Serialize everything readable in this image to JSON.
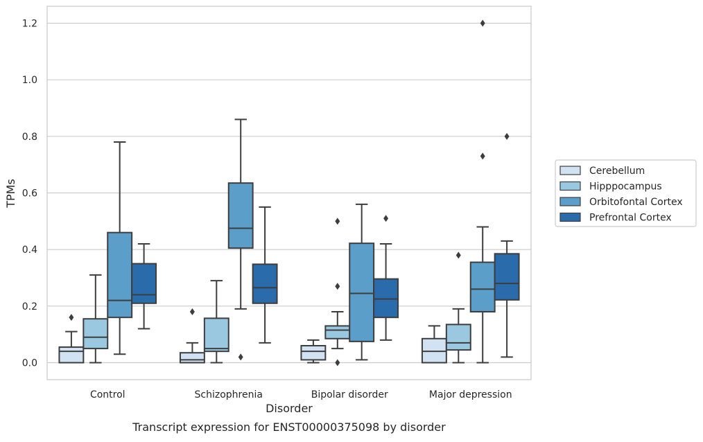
{
  "chart_data": {
    "type": "box",
    "title": "Transcript expression for ENST00000375098 by disorder",
    "xlabel": "Disorder",
    "ylabel": "TPMs",
    "ylim": [
      -0.06,
      1.26
    ],
    "yticks": [
      0.0,
      0.2,
      0.4,
      0.6,
      0.8,
      1.0,
      1.2
    ],
    "ytick_labels": [
      "0.0",
      "0.2",
      "0.4",
      "0.6",
      "0.8",
      "1.0",
      "1.2"
    ],
    "grid": true,
    "legend_position": "right",
    "categories": [
      "Control",
      "Schizophrenia",
      "Bipolar disorder",
      "Major depression"
    ],
    "series": [
      {
        "name": "Cerebellum",
        "color": "#d1e2f2",
        "boxes": [
          {
            "whislo": 0.0,
            "q1": 0.0,
            "med": 0.04,
            "q3": 0.055,
            "whishi": 0.11,
            "fliers": [
              0.16
            ]
          },
          {
            "whislo": 0.0,
            "q1": 0.0,
            "med": 0.01,
            "q3": 0.035,
            "whishi": 0.07,
            "fliers": [
              0.18
            ]
          },
          {
            "whislo": 0.0,
            "q1": 0.01,
            "med": 0.04,
            "q3": 0.06,
            "whishi": 0.08,
            "fliers": []
          },
          {
            "whislo": 0.0,
            "q1": 0.0,
            "med": 0.04,
            "q3": 0.085,
            "whishi": 0.13,
            "fliers": []
          }
        ]
      },
      {
        "name": "Hipppocampus",
        "color": "#9ac8e0",
        "boxes": [
          {
            "whislo": 0.0,
            "q1": 0.05,
            "med": 0.09,
            "q3": 0.155,
            "whishi": 0.31,
            "fliers": []
          },
          {
            "whislo": 0.0,
            "q1": 0.04,
            "med": 0.05,
            "q3": 0.157,
            "whishi": 0.29,
            "fliers": []
          },
          {
            "whislo": 0.05,
            "q1": 0.085,
            "med": 0.115,
            "q3": 0.13,
            "whishi": 0.18,
            "fliers": [
              0.27,
              0.5,
              0.0
            ]
          },
          {
            "whislo": 0.0,
            "q1": 0.045,
            "med": 0.07,
            "q3": 0.135,
            "whishi": 0.19,
            "fliers": [
              0.38
            ]
          }
        ]
      },
      {
        "name": "Orbitofontal Cortex",
        "color": "#5a9ec9",
        "boxes": [
          {
            "whislo": 0.03,
            "q1": 0.16,
            "med": 0.22,
            "q3": 0.46,
            "whishi": 0.78,
            "fliers": []
          },
          {
            "whislo": 0.19,
            "q1": 0.405,
            "med": 0.475,
            "q3": 0.635,
            "whishi": 0.86,
            "fliers": [
              0.02
            ]
          },
          {
            "whislo": 0.01,
            "q1": 0.075,
            "med": 0.245,
            "q3": 0.422,
            "whishi": 0.56,
            "fliers": []
          },
          {
            "whislo": 0.0,
            "q1": 0.18,
            "med": 0.26,
            "q3": 0.355,
            "whishi": 0.48,
            "fliers": [
              0.73,
              1.2
            ]
          }
        ]
      },
      {
        "name": "Prefrontal Cortex",
        "color": "#2a6bac",
        "boxes": [
          {
            "whislo": 0.12,
            "q1": 0.21,
            "med": 0.24,
            "q3": 0.35,
            "whishi": 0.42,
            "fliers": []
          },
          {
            "whislo": 0.07,
            "q1": 0.21,
            "med": 0.265,
            "q3": 0.348,
            "whishi": 0.55,
            "fliers": []
          },
          {
            "whislo": 0.08,
            "q1": 0.16,
            "med": 0.225,
            "q3": 0.296,
            "whishi": 0.42,
            "fliers": [
              0.51
            ]
          },
          {
            "whislo": 0.02,
            "q1": 0.222,
            "med": 0.28,
            "q3": 0.385,
            "whishi": 0.43,
            "fliers": [
              0.8
            ]
          }
        ]
      }
    ]
  }
}
